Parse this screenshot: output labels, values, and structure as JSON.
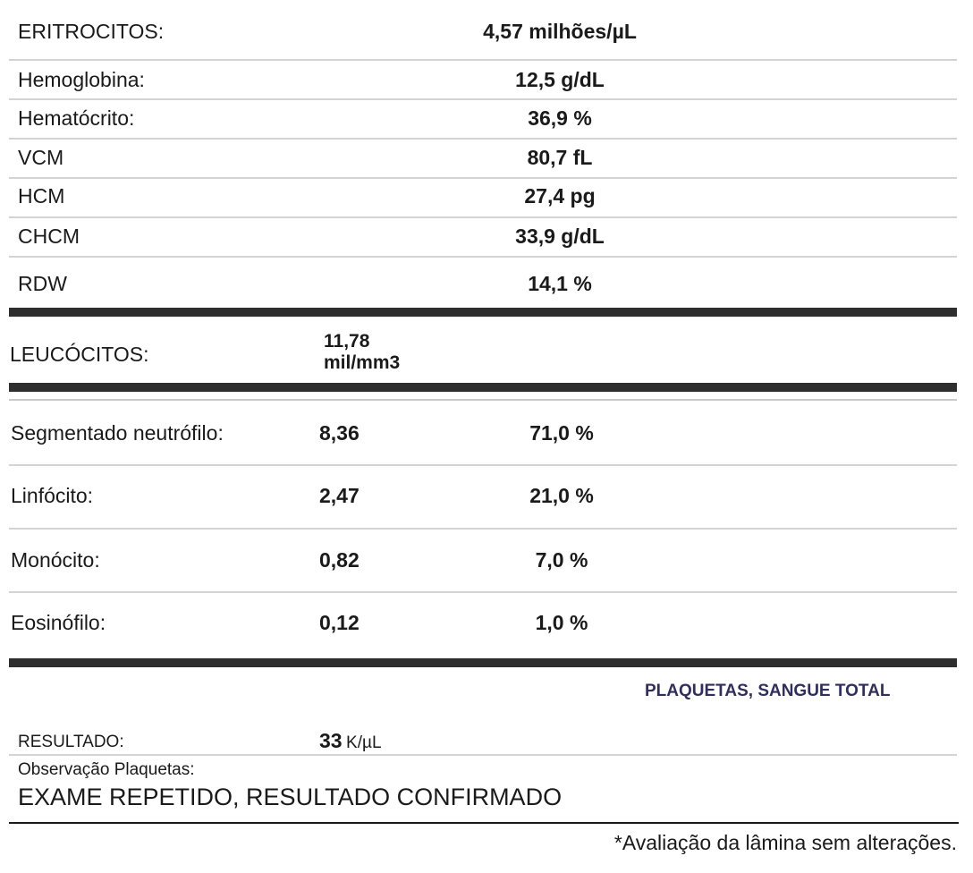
{
  "eritrocitos": {
    "label": "ERITROCITOS:",
    "value": "4,57 milhões/µL"
  },
  "red_indices": [
    {
      "label": "Hemoglobina:",
      "value": "12,5 g/dL"
    },
    {
      "label": "Hematócrito:",
      "value": "36,9 %"
    },
    {
      "label": "VCM",
      "value": "80,7 fL"
    },
    {
      "label": "HCM",
      "value": "27,4 pg"
    },
    {
      "label": "CHCM",
      "value": "33,9 g/dL"
    },
    {
      "label": "RDW",
      "value": "14,1 %"
    }
  ],
  "leucocitos": {
    "label": "LEUCÓCITOS:",
    "value_line1": "11,78",
    "value_line2": "mil/mm3"
  },
  "differential": [
    {
      "label": "Segmentado neutrófilo:",
      "absolute": "8,36",
      "percent": "71,0 %"
    },
    {
      "label": "Linfócito:",
      "absolute": "2,47",
      "percent": "21,0 %"
    },
    {
      "label": "Monócito:",
      "absolute": "0,82",
      "percent": "7,0 %"
    },
    {
      "label": "Eosinófilo:",
      "absolute": "0,12",
      "percent": "1,0 %"
    }
  ],
  "plaquetas": {
    "title": "PLAQUETAS, SANGUE TOTAL",
    "result_label": "RESULTADO:",
    "result_value": "33",
    "result_unit": "K/µL",
    "obs_label": "Observação Plaquetas:",
    "obs_text": "EXAME REPETIDO, RESULTADO CONFIRMADO"
  },
  "footnote": "*Avaliação da lâmina sem alterações."
}
